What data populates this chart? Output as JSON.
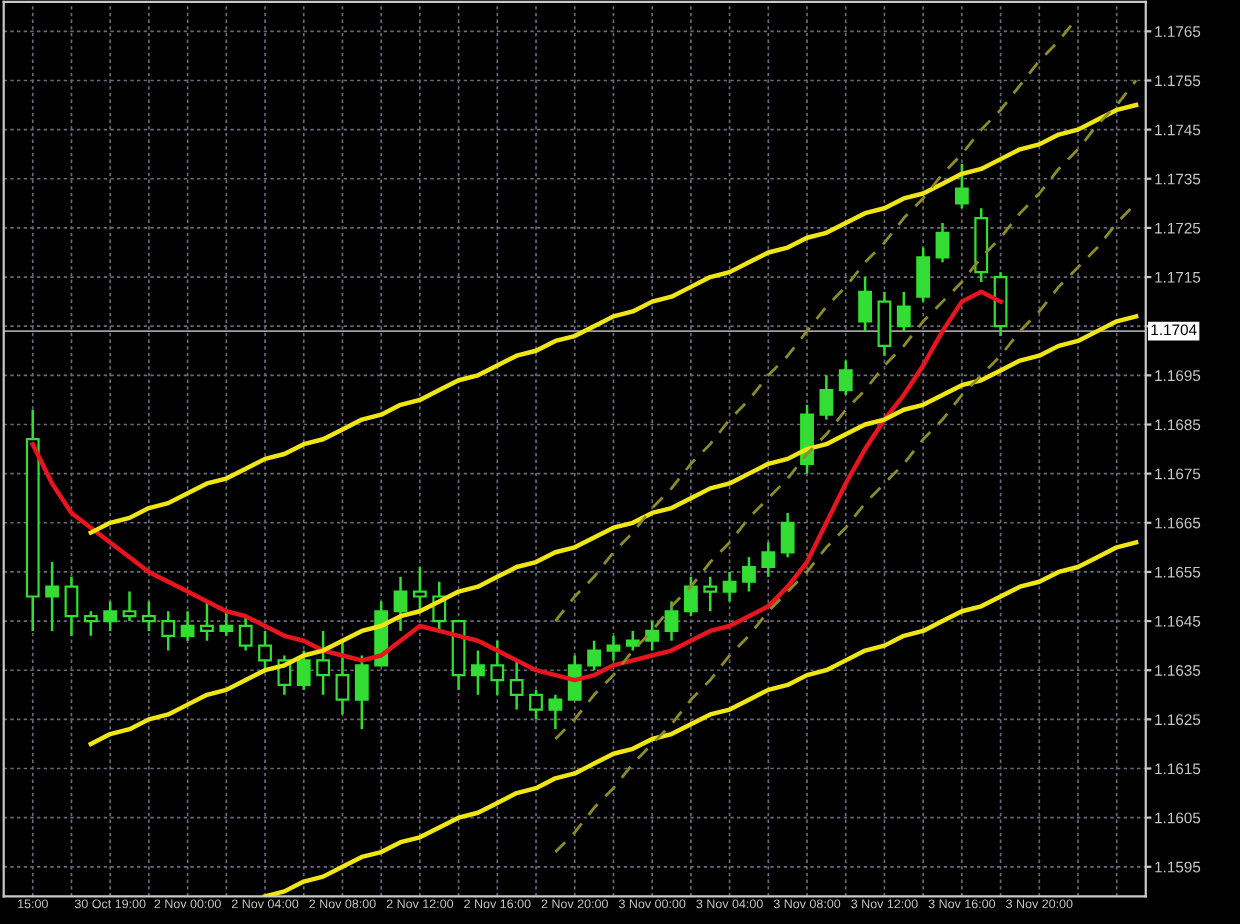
{
  "chart_data": {
    "type": "candlestick",
    "categories": [
      null,
      "15:00",
      null,
      null,
      null,
      "30 Oct 19:00",
      null,
      null,
      null,
      "2 Nov 00:00",
      null,
      null,
      null,
      "2 Nov 04:00",
      null,
      null,
      null,
      "2 Nov 08:00",
      null,
      null,
      null,
      "2 Nov 12:00",
      null,
      null,
      null,
      "2 Nov 16:00",
      null,
      null,
      null,
      "2 Nov 20:00",
      null,
      null,
      null,
      "3 Nov 00:00",
      null,
      null,
      null,
      "3 Nov 04:00",
      null,
      null,
      null,
      "3 Nov 08:00",
      null,
      null,
      null,
      "3 Nov 12:00",
      null,
      null,
      null,
      "3 Nov 16:00",
      null,
      null,
      null,
      "3 Nov 20:00",
      null,
      null,
      null,
      null,
      null
    ],
    "ylim": [
      1.1589,
      1.1771
    ],
    "yticks": [
      {
        "value": 1.1595,
        "label": "1.1595"
      },
      {
        "value": 1.1605,
        "label": "1.1605"
      },
      {
        "value": 1.1615,
        "label": "1.1615"
      },
      {
        "value": 1.1625,
        "label": "1.1625"
      },
      {
        "value": 1.1635,
        "label": "1.1635"
      },
      {
        "value": 1.1645,
        "label": "1.1645"
      },
      {
        "value": 1.1655,
        "label": "1.1655"
      },
      {
        "value": 1.1665,
        "label": "1.1665"
      },
      {
        "value": 1.1675,
        "label": "1.1675"
      },
      {
        "value": 1.1685,
        "label": "1.1685"
      },
      {
        "value": 1.1695,
        "label": "1.1695"
      },
      {
        "value": 1.1705,
        "label": null
      },
      {
        "value": 1.1715,
        "label": "1.1715"
      },
      {
        "value": 1.1725,
        "label": "1.1725"
      },
      {
        "value": 1.1735,
        "label": "1.1735"
      },
      {
        "value": 1.1745,
        "label": "1.1745"
      },
      {
        "value": 1.1755,
        "label": "1.1755"
      },
      {
        "value": 1.1765,
        "label": "1.1765"
      }
    ],
    "grid": true,
    "ref_lines": [
      {
        "axis": "y",
        "value": 1.1704,
        "label": "1.1704",
        "color": "#a0a0a0"
      }
    ],
    "series": [
      {
        "color": "#33dd33",
        "ohlc": [
          null,
          [
            1.1682,
            1.1688,
            1.1643,
            1.165
          ],
          [
            1.165,
            1.1657,
            1.1643,
            1.1652
          ],
          [
            1.1652,
            1.1654,
            1.1642,
            1.1646
          ],
          [
            1.1646,
            1.1647,
            1.1642,
            1.1645
          ],
          [
            1.1645,
            1.1649,
            1.1643,
            1.1647
          ],
          [
            1.1647,
            1.1651,
            1.1645,
            1.1646
          ],
          [
            1.1646,
            1.1649,
            1.1643,
            1.1645
          ],
          [
            1.1645,
            1.1647,
            1.1639,
            1.1642
          ],
          [
            1.1642,
            1.1647,
            1.1641,
            1.1644
          ],
          [
            1.1644,
            1.1649,
            1.1641,
            1.1643
          ],
          [
            1.1643,
            1.1647,
            1.1642,
            1.1644
          ],
          [
            1.1644,
            1.1646,
            1.1639,
            1.164
          ],
          [
            1.164,
            1.1643,
            1.1635,
            1.1637
          ],
          [
            1.1637,
            1.1638,
            1.163,
            1.1632
          ],
          [
            1.1632,
            1.1639,
            1.1631,
            1.1637
          ],
          [
            1.1637,
            1.1643,
            1.163,
            1.1634
          ],
          [
            1.1634,
            1.1641,
            1.1626,
            1.1629
          ],
          [
            1.1629,
            1.1638,
            1.1623,
            1.1636
          ],
          [
            1.1636,
            1.1649,
            1.1636,
            1.1647
          ],
          [
            1.1647,
            1.1654,
            1.1643,
            1.1651
          ],
          [
            1.1651,
            1.1656,
            1.1647,
            1.165
          ],
          [
            1.165,
            1.1653,
            1.1643,
            1.1645
          ],
          [
            1.1645,
            1.1645,
            1.1631,
            1.1634
          ],
          [
            1.1634,
            1.1639,
            1.163,
            1.1636
          ],
          [
            1.1636,
            1.1641,
            1.163,
            1.1633
          ],
          [
            1.1633,
            1.1637,
            1.1627,
            1.163
          ],
          [
            1.163,
            1.1631,
            1.1625,
            1.1627
          ],
          [
            1.1627,
            1.163,
            1.1623,
            1.1629
          ],
          [
            1.1629,
            1.1638,
            1.1629,
            1.1636
          ],
          [
            1.1636,
            1.1641,
            1.1635,
            1.1639
          ],
          [
            1.1639,
            1.1642,
            1.1637,
            1.164
          ],
          [
            1.164,
            1.1643,
            1.1639,
            1.1641
          ],
          [
            1.1641,
            1.1645,
            1.1639,
            1.1643
          ],
          [
            1.1643,
            1.1649,
            1.1641,
            1.1647
          ],
          [
            1.1647,
            1.1654,
            1.1646,
            1.1652
          ],
          [
            1.1652,
            1.1654,
            1.1647,
            1.1651
          ],
          [
            1.1651,
            1.1655,
            1.1649,
            1.1653
          ],
          [
            1.1653,
            1.1658,
            1.1651,
            1.1656
          ],
          [
            1.1656,
            1.1661,
            1.1654,
            1.1659
          ],
          [
            1.1659,
            1.1667,
            1.1658,
            1.1665
          ],
          [
            1.1677,
            1.1689,
            1.1675,
            1.1687
          ],
          [
            1.1687,
            1.1695,
            1.1686,
            1.1692
          ],
          [
            1.1692,
            1.1698,
            1.1691,
            1.1696
          ],
          [
            1.1706,
            1.1715,
            1.1704,
            1.1712
          ],
          [
            1.171,
            1.1712,
            1.1699,
            1.1701
          ],
          [
            1.1705,
            1.1712,
            1.1704,
            1.1709
          ],
          [
            1.1711,
            1.1721,
            1.171,
            1.1719
          ],
          [
            1.1719,
            1.1726,
            1.1718,
            1.1724
          ],
          [
            1.173,
            1.1738,
            1.1729,
            1.1733
          ],
          [
            1.1727,
            1.1729,
            1.1714,
            1.1716
          ],
          [
            1.1715,
            1.1716,
            1.1703,
            1.1705
          ],
          null,
          null,
          null,
          null,
          null,
          null,
          null
        ]
      },
      {
        "type": "line",
        "color": "#e8141e",
        "line_style": "solid",
        "values": [
          null,
          1.1681,
          1.1673,
          1.1667,
          1.1664,
          1.1661,
          1.1658,
          1.1655,
          1.1653,
          1.1651,
          1.1649,
          1.1647,
          1.1646,
          1.1644,
          1.1642,
          1.1641,
          1.1639,
          1.1638,
          1.1637,
          1.1638,
          1.1641,
          1.1644,
          1.1643,
          1.1642,
          1.1641,
          1.1639,
          1.1637,
          1.1635,
          1.1634,
          1.1633,
          1.1634,
          1.1636,
          1.1637,
          1.1638,
          1.1639,
          1.1641,
          1.1643,
          1.1644,
          1.1646,
          1.1648,
          1.1652,
          1.1657,
          1.1665,
          1.1673,
          1.168,
          1.1686,
          1.1691,
          1.1697,
          1.1704,
          1.171,
          1.1712,
          1.171,
          null,
          null,
          null,
          null,
          null,
          null,
          null
        ]
      },
      {
        "type": "line",
        "color": "#f0e614",
        "line_style": "solid",
        "values": [
          null,
          null,
          null,
          null,
          1.1663,
          1.1665,
          1.1666,
          1.1668,
          1.1669,
          1.1671,
          1.1673,
          1.1674,
          1.1676,
          1.1678,
          1.1679,
          1.1681,
          1.1682,
          1.1684,
          1.1686,
          1.1687,
          1.1689,
          1.169,
          1.1692,
          1.1694,
          1.1695,
          1.1697,
          1.1699,
          1.17,
          1.1702,
          1.1703,
          1.1705,
          1.1707,
          1.1708,
          1.171,
          1.1711,
          1.1713,
          1.1715,
          1.1716,
          1.1718,
          1.172,
          1.1721,
          1.1723,
          1.1724,
          1.1726,
          1.1728,
          1.1729,
          1.1731,
          1.1732,
          1.1734,
          1.1736,
          1.1737,
          1.1739,
          1.1741,
          1.1742,
          1.1744,
          1.1745,
          1.1747,
          1.1749,
          1.175
        ]
      },
      {
        "type": "line",
        "color": "#f0e614",
        "line_style": "solid",
        "values": [
          null,
          null,
          null,
          null,
          1.162,
          1.1622,
          1.1623,
          1.1625,
          1.1626,
          1.1628,
          1.163,
          1.1631,
          1.1633,
          1.1635,
          1.1636,
          1.1638,
          1.1639,
          1.1641,
          1.1643,
          1.1644,
          1.1646,
          1.1647,
          1.1649,
          1.1651,
          1.1652,
          1.1654,
          1.1656,
          1.1657,
          1.1659,
          1.166,
          1.1662,
          1.1664,
          1.1665,
          1.1667,
          1.1668,
          1.167,
          1.1672,
          1.1673,
          1.1675,
          1.1677,
          1.1678,
          1.168,
          1.1681,
          1.1683,
          1.1685,
          1.1686,
          1.1688,
          1.1689,
          1.1691,
          1.1693,
          1.1694,
          1.1696,
          1.1698,
          1.1699,
          1.1701,
          1.1702,
          1.1704,
          1.1706,
          1.1707
        ]
      },
      {
        "type": "line",
        "color": "#f0e614",
        "line_style": "solid",
        "values": [
          null,
          null,
          null,
          null,
          null,
          null,
          null,
          null,
          null,
          null,
          null,
          null,
          null,
          1.1589,
          1.159,
          1.1592,
          1.1593,
          1.1595,
          1.1597,
          1.1598,
          1.16,
          1.1601,
          1.1603,
          1.1605,
          1.1606,
          1.1608,
          1.161,
          1.1611,
          1.1613,
          1.1614,
          1.1616,
          1.1618,
          1.1619,
          1.1621,
          1.1622,
          1.1624,
          1.1626,
          1.1627,
          1.1629,
          1.1631,
          1.1632,
          1.1634,
          1.1635,
          1.1637,
          1.1639,
          1.164,
          1.1642,
          1.1643,
          1.1645,
          1.1647,
          1.1648,
          1.165,
          1.1652,
          1.1653,
          1.1655,
          1.1656,
          1.1658,
          1.166,
          1.1661
        ]
      },
      {
        "type": "line",
        "color": "#8c8c28",
        "line_style": "dashed",
        "values": [
          null,
          null,
          null,
          null,
          null,
          null,
          null,
          null,
          null,
          null,
          null,
          null,
          null,
          null,
          null,
          null,
          null,
          null,
          null,
          null,
          null,
          null,
          null,
          null,
          null,
          null,
          null,
          null,
          1.1645,
          1.165,
          1.1654,
          1.1659,
          1.1663,
          1.1668,
          1.1672,
          1.1677,
          1.1681,
          1.1686,
          1.169,
          1.1695,
          1.1699,
          1.1704,
          1.1709,
          1.1713,
          1.1718,
          1.1722,
          1.1727,
          1.1731,
          1.1736,
          1.174,
          1.1745,
          1.1749,
          1.1754,
          1.1759,
          1.1763,
          1.1768,
          null,
          null,
          null
        ]
      },
      {
        "type": "line",
        "color": "#8c8c28",
        "line_style": "dashed",
        "values": [
          null,
          null,
          null,
          null,
          null,
          null,
          null,
          null,
          null,
          null,
          null,
          null,
          null,
          null,
          null,
          null,
          null,
          null,
          null,
          null,
          null,
          null,
          null,
          null,
          null,
          null,
          null,
          null,
          1.1621,
          1.1625,
          1.163,
          1.1634,
          1.1639,
          1.1643,
          1.1648,
          1.1652,
          1.1657,
          1.1661,
          1.1666,
          1.167,
          1.1674,
          1.1679,
          1.1683,
          1.1688,
          1.1692,
          1.1697,
          1.1701,
          1.1706,
          1.171,
          1.1714,
          1.1719,
          1.1723,
          1.1728,
          1.1732,
          1.1737,
          1.1741,
          1.1746,
          1.175,
          1.1755
        ]
      },
      {
        "type": "line",
        "color": "#8c8c28",
        "line_style": "dashed",
        "values": [
          null,
          null,
          null,
          null,
          null,
          null,
          null,
          null,
          null,
          null,
          null,
          null,
          null,
          null,
          null,
          null,
          null,
          null,
          null,
          null,
          null,
          null,
          null,
          null,
          null,
          null,
          null,
          null,
          1.1598,
          1.1602,
          1.1607,
          1.1611,
          1.1616,
          1.162,
          1.1624,
          1.1629,
          1.1633,
          1.1638,
          1.1642,
          1.1647,
          1.1651,
          1.1655,
          1.166,
          1.1664,
          1.1669,
          1.1673,
          1.1677,
          1.1682,
          1.1686,
          1.1691,
          1.1695,
          1.1699,
          1.1704,
          1.1708,
          1.1713,
          1.1717,
          1.1721,
          1.1726,
          1.173
        ]
      }
    ]
  }
}
